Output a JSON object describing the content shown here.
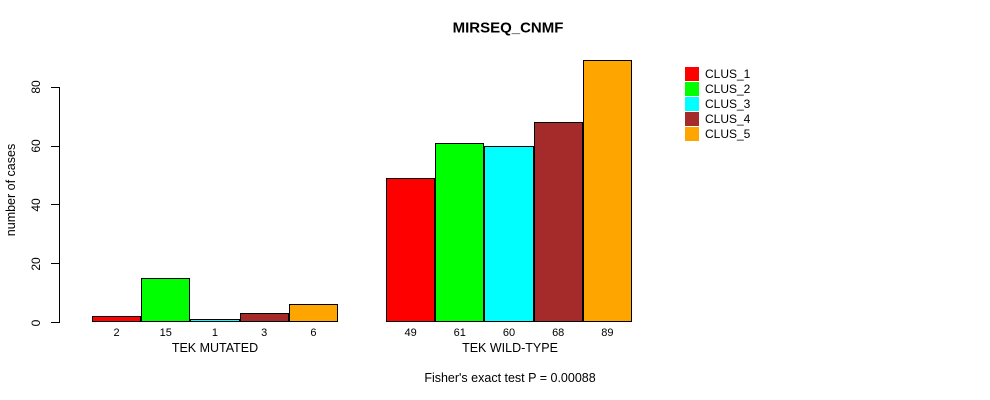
{
  "chart": {
    "title": "MIRSEQ_CNMF",
    "ylabel": "number of cases",
    "footnote": "Fisher's exact test P = 0.00088",
    "groups": [
      {
        "label": "TEK MUTATED"
      },
      {
        "label": "TEK WILD-TYPE"
      }
    ]
  },
  "chart_data": {
    "type": "bar",
    "title": "MIRSEQ_CNMF",
    "xlabel": "",
    "ylabel": "number of cases",
    "categories": [
      "TEK MUTATED",
      "TEK WILD-TYPE"
    ],
    "series": [
      {
        "name": "CLUS_1",
        "color": "#FF0000",
        "values": [
          2,
          49
        ]
      },
      {
        "name": "CLUS_2",
        "color": "#00FF00",
        "values": [
          15,
          61
        ]
      },
      {
        "name": "CLUS_3",
        "color": "#00FFFF",
        "values": [
          1,
          60
        ]
      },
      {
        "name": "CLUS_4",
        "color": "#A52A2A",
        "values": [
          3,
          68
        ]
      },
      {
        "name": "CLUS_5",
        "color": "#FFA500",
        "values": [
          6,
          89
        ]
      }
    ],
    "bar_labels": [
      [
        2,
        15,
        1,
        3,
        6
      ],
      [
        49,
        61,
        60,
        68,
        89
      ]
    ],
    "y_ticks": [
      0,
      20,
      40,
      60,
      80
    ],
    "ylim": [
      0,
      89
    ],
    "grid": false,
    "legend_position": "right",
    "annotation": "Fisher's exact test P = 0.00088"
  }
}
